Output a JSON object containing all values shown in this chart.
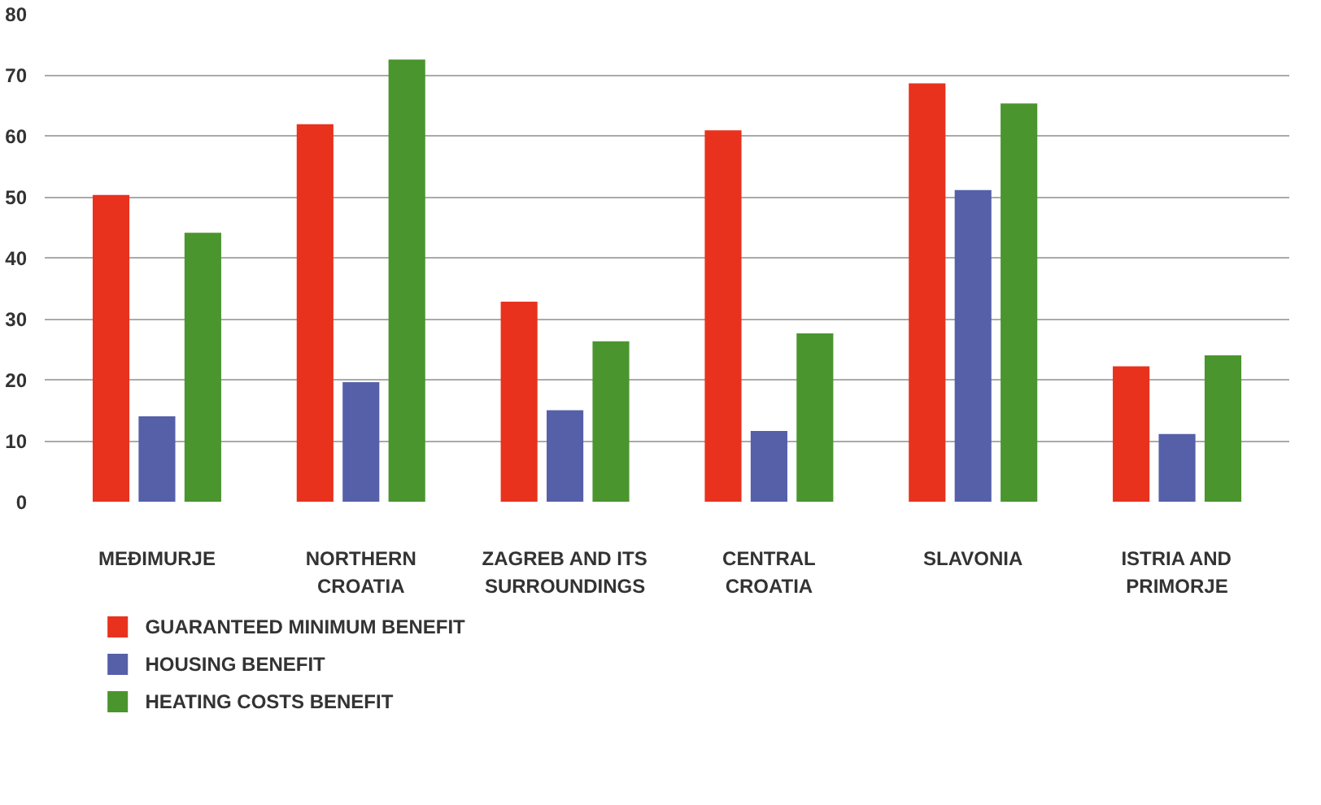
{
  "chart_data": {
    "type": "bar",
    "categories": [
      "MEĐIMURJE",
      "NORTHERN CROATIA",
      "ZAGREB AND ITS SURROUNDINGS",
      "CENTRAL CROATIA",
      "SLAVONIA",
      "ISTRIA AND PRIMORJE"
    ],
    "series": [
      {
        "name": "GUARANTEED MINIMUM BENEFIT",
        "color": "#e8321e",
        "values": [
          50.3,
          61.9,
          32.8,
          60.9,
          68.6,
          22.2
        ]
      },
      {
        "name": "HOUSING BENEFIT",
        "color": "#5560a8",
        "values": [
          14.0,
          19.6,
          15.0,
          11.6,
          51.1,
          11.1
        ]
      },
      {
        "name": "HEATING COSTS BENEFIT",
        "color": "#4a952e",
        "values": [
          44.1,
          72.5,
          26.3,
          27.6,
          65.3,
          24.0
        ]
      }
    ],
    "ylim": [
      0,
      80
    ],
    "yticks": [
      0,
      10,
      20,
      30,
      40,
      50,
      60,
      70,
      80
    ],
    "grid": "y",
    "legend": "bottom left"
  }
}
